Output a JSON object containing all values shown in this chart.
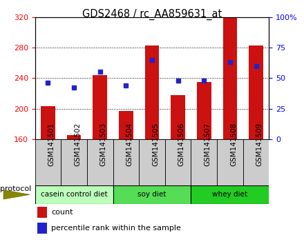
{
  "title": "GDS2468 / rc_AA859631_at",
  "samples": [
    "GSM141501",
    "GSM141502",
    "GSM141503",
    "GSM141504",
    "GSM141505",
    "GSM141506",
    "GSM141507",
    "GSM141508",
    "GSM141509"
  ],
  "counts": [
    203,
    165,
    244,
    197,
    283,
    218,
    235,
    320,
    283
  ],
  "percentile_ranks": [
    46,
    42,
    55,
    44,
    65,
    48,
    48,
    63,
    60
  ],
  "ylim_left": [
    160,
    320
  ],
  "ylim_right": [
    0,
    100
  ],
  "yticks_left": [
    160,
    200,
    240,
    280,
    320
  ],
  "yticks_right": [
    0,
    25,
    50,
    75,
    100
  ],
  "bar_color": "#cc1111",
  "dot_color": "#2222cc",
  "bar_bottom": 160,
  "groups": [
    {
      "label": "casein control diet",
      "start": 0,
      "end": 2,
      "color": "#bbffbb"
    },
    {
      "label": "soy diet",
      "start": 3,
      "end": 5,
      "color": "#55dd55"
    },
    {
      "label": "whey diet",
      "start": 6,
      "end": 8,
      "color": "#22cc22"
    }
  ],
  "protocol_label": "protocol",
  "legend_count_label": "count",
  "legend_pct_label": "percentile rank within the sample",
  "tick_bg_color": "#cccccc",
  "title_fontsize": 10.5,
  "tick_fontsize": 7.5,
  "legend_fontsize": 8
}
